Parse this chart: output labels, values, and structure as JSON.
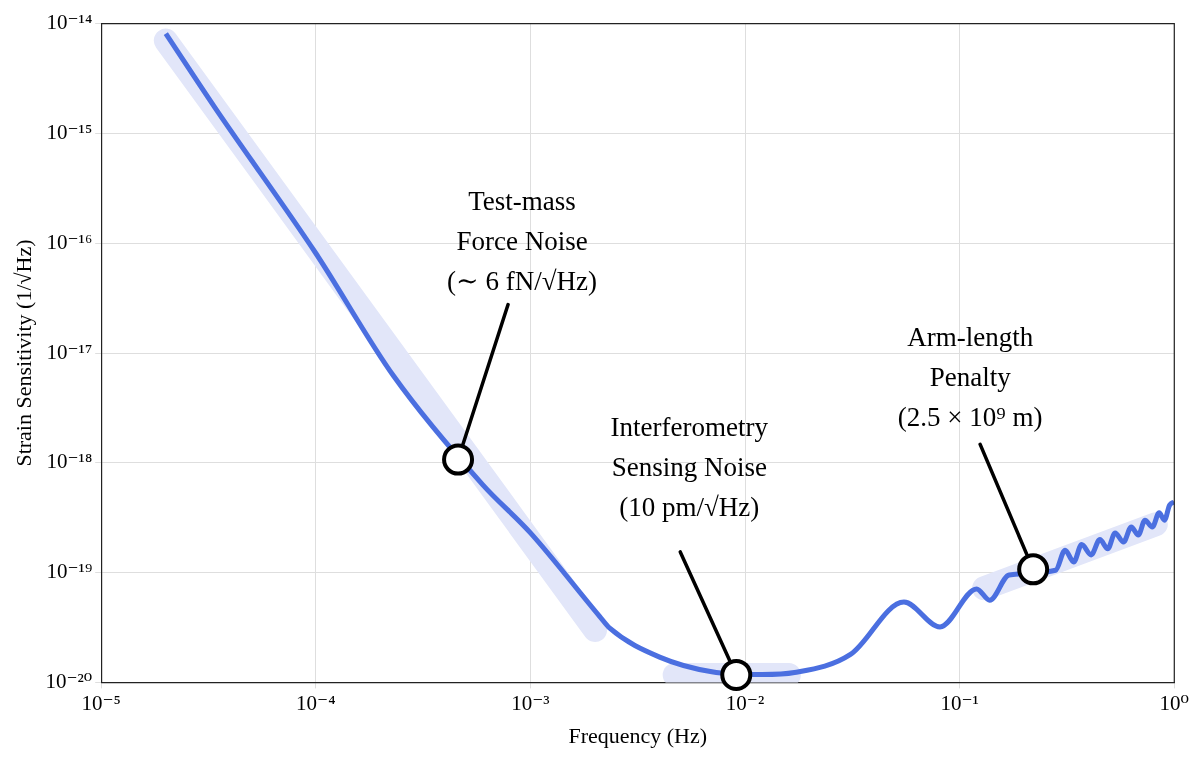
{
  "chart_data": {
    "type": "line",
    "xlabel": "Frequency (Hz)",
    "ylabel": "Strain Sensitivity (1/√Hz)",
    "log": "xy",
    "grid": true,
    "legend": false,
    "marker": "none",
    "line_style": "solid",
    "xlim": [
      1e-05,
      1
    ],
    "ylim": [
      1e-20,
      1e-14
    ],
    "xticks": [
      {
        "value": 1e-05,
        "label": "10⁻⁵"
      },
      {
        "value": 0.0001,
        "label": "10⁻⁴"
      },
      {
        "value": 0.001,
        "label": "10⁻³"
      },
      {
        "value": 0.01,
        "label": "10⁻²"
      },
      {
        "value": 0.1,
        "label": "10⁻¹"
      },
      {
        "value": 1,
        "label": "10⁰"
      }
    ],
    "yticks": [
      {
        "value": 1e-20,
        "label": "10⁻²⁰"
      },
      {
        "value": 1e-19,
        "label": "10⁻¹⁹"
      },
      {
        "value": 1e-18,
        "label": "10⁻¹⁸"
      },
      {
        "value": 1e-17,
        "label": "10⁻¹⁷"
      },
      {
        "value": 1e-16,
        "label": "10⁻¹⁶"
      },
      {
        "value": 1e-15,
        "label": "10⁻¹⁵"
      },
      {
        "value": 1e-14,
        "label": "10⁻¹⁴"
      }
    ],
    "series": [
      {
        "color": "#e2e6f9",
        "x": [
          2e-05,
          0.002
        ],
        "values": [
          7e-15,
          3e-20
        ]
      },
      {
        "color": "#e2e6f9",
        "x": [
          0.0047,
          0.016
        ],
        "values": [
          1.17e-20,
          1.17e-20
        ]
      },
      {
        "color": "#e2e6f9",
        "x": [
          0.13,
          0.82
        ],
        "values": [
          7.2e-20,
          2.75e-19
        ]
      },
      {
        "color": "#4b6fe0",
        "x": [
          2e-05,
          3.4e-05,
          0.0001,
          0.00023,
          0.0006,
          0.001,
          0.0021,
          0.00235,
          0.004,
          0.007,
          0.012,
          0.017,
          0.031,
          0.055,
          0.081,
          0.12,
          0.138,
          0.17,
          0.28,
          0.31,
          0.34,
          0.37,
          0.41,
          0.45,
          0.49,
          0.53,
          0.58,
          0.63,
          0.68,
          0.73,
          0.79,
          0.85,
          0.9,
          0.95,
          1.0
        ],
        "values": [
          8.1e-15,
          1.7e-15,
          8.1e-17,
          6.2e-18,
          6.3e-19,
          2.3e-19,
          4e-20,
          3.1e-20,
          1.7e-20,
          1.25e-20,
          1.18e-20,
          1.23e-20,
          1.8e-20,
          5.4e-20,
          3.2e-20,
          7.1e-20,
          5.6e-20,
          9.5e-20,
          1.05e-19,
          1.6e-19,
          1.25e-19,
          1.8e-19,
          1.45e-19,
          2e-19,
          1.65e-19,
          2.3e-19,
          1.9e-19,
          2.6e-19,
          2.2e-19,
          3e-19,
          2.6e-19,
          3.5e-19,
          3e-19,
          4.1e-19,
          4.4e-19
        ]
      }
    ],
    "annotations": [
      {
        "text": "Test-mass\nForce Noise\n(∼ 6 fN/√Hz)",
        "x": 0.00046,
        "y": 1.07e-18
      },
      {
        "text": "Interferometry\nSensing Noise\n(10 pm/√Hz)",
        "x": 0.0091,
        "y": 1.17e-20
      },
      {
        "text": "Arm-length\nPenalty\n(2.5 × 10⁹ m)",
        "x": 0.22,
        "y": 1.07e-19
      }
    ]
  }
}
